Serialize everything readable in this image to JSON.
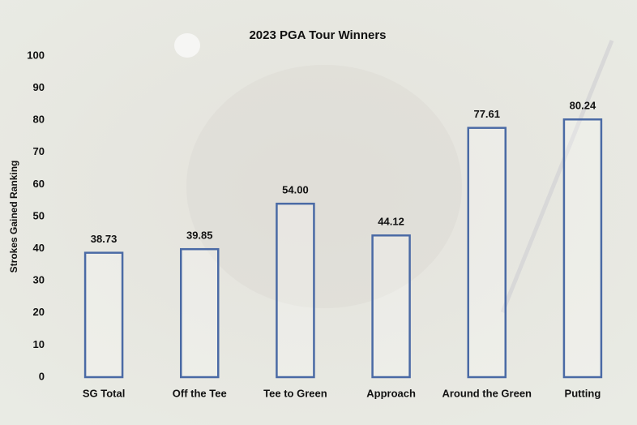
{
  "chart_data": {
    "type": "bar",
    "title": "2023 PGA Tour Winners",
    "y_label": "Strokes Gained Ranking",
    "categories": [
      "SG Total",
      "Off the Tee",
      "Tee to Green",
      "Approach",
      "Around the Green",
      "Putting"
    ],
    "values": [
      38.73,
      39.85,
      54,
      44.12,
      77.61,
      80.24
    ],
    "value_labels": [
      "38.73",
      "39.85",
      "54.00",
      "44.12",
      "77.61",
      "80.24"
    ],
    "color": "#4a6aa5",
    "ylim": [
      0,
      100
    ],
    "yticks": [
      0,
      10,
      20,
      30,
      40,
      50,
      60,
      70,
      80,
      90,
      100
    ],
    "grid": false
  }
}
